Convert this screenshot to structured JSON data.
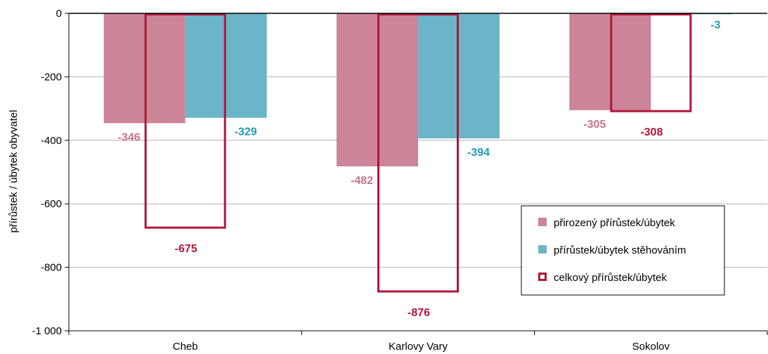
{
  "chart_data": {
    "type": "bar",
    "title": "",
    "xlabel": "",
    "ylabel": "přírůstek / úbytek obyvatel",
    "categories": [
      "Cheb",
      "Karlovy Vary",
      "Sokolov"
    ],
    "ylim": [
      -1000,
      0
    ],
    "yticks": [
      0,
      -200,
      -400,
      -600,
      -800,
      -1000
    ],
    "ytick_labels": [
      "0",
      "-200",
      "-400",
      "-600",
      "-800",
      "-1 000"
    ],
    "grid": true,
    "legend_position": "bottom-right",
    "series": [
      {
        "name": "přirozený přírůstek/úbytek",
        "values": [
          -346,
          -482,
          -305
        ],
        "labels": [
          "-346",
          "-482",
          "-305"
        ],
        "color": "#cc8499",
        "label_color": "#c7728d",
        "style": "filled"
      },
      {
        "name": "přírůstek/úbytek stěhováním",
        "values": [
          -329,
          -394,
          -3
        ],
        "labels": [
          "-329",
          "-394",
          "-3"
        ],
        "color": "#6cb5c8",
        "label_color": "#1f9bb0",
        "style": "filled"
      },
      {
        "name": "celkový přírůstek/úbytek",
        "values": [
          -675,
          -876,
          -308
        ],
        "labels": [
          "-675",
          "-876",
          "-308"
        ],
        "color": "#b0173a",
        "label_color": "#b0173a",
        "style": "outline"
      }
    ]
  }
}
